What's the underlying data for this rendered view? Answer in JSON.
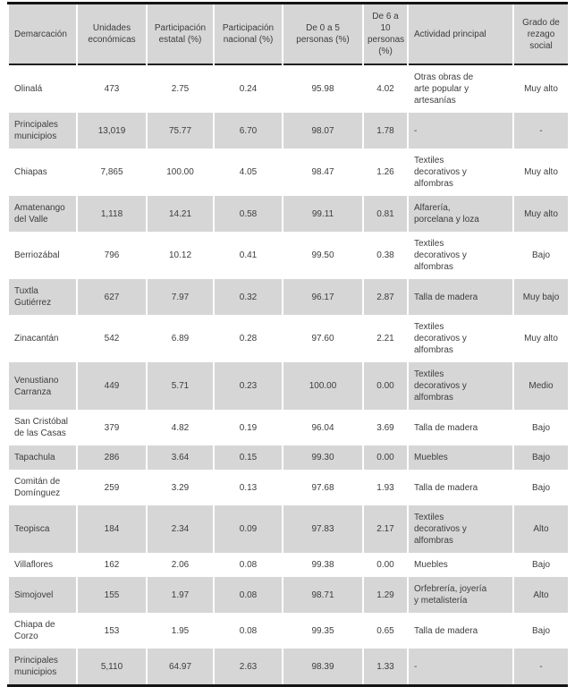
{
  "colors": {
    "header_background": "#d6d6d6",
    "shaded_row_background": "#d6d6d6",
    "text": "#3d3d3d",
    "border": "#151515"
  },
  "table": {
    "columns": [
      {
        "key": "demarcacion",
        "label": "Demarcación",
        "align": "left"
      },
      {
        "key": "unidades-economicas",
        "label": "Unidades\neconómicas",
        "align": "center"
      },
      {
        "key": "participacion-estatal",
        "label": "Participación\nestatal (%)",
        "align": "center"
      },
      {
        "key": "participacion-nacional",
        "label": "Participación\nnacional (%)",
        "align": "center"
      },
      {
        "key": "de-0-a-5-personas",
        "label": "De 0 a 5\npersonas (%)",
        "align": "center"
      },
      {
        "key": "de-6-a-10-personas",
        "label": "De 6 a 10\npersonas\n(%)",
        "align": "center"
      },
      {
        "key": "actividad-principal",
        "label": "Actividad principal",
        "align": "left"
      },
      {
        "key": "grado-rezago-social",
        "label": "Grado de\nrezago social",
        "align": "center"
      }
    ],
    "rows": [
      [
        "Olinalá",
        "473",
        "2.75",
        "0.24",
        "95.98",
        "4.02",
        "Otras obras de\narte popular y\nartesanías",
        "Muy alto"
      ],
      [
        "Principales\nmunicipios",
        "13,019",
        "75.77",
        "6.70",
        "98.07",
        "1.78",
        "-",
        "-"
      ],
      [
        "Chiapas",
        "7,865",
        "100.00",
        "4.05",
        "98.47",
        "1.26",
        "Textiles\ndecorativos y\nalfombras",
        "Muy alto"
      ],
      [
        "Amatenango\ndel Valle",
        "1,118",
        "14.21",
        "0.58",
        "99.11",
        "0.81",
        "Alfarería,\nporcelana y loza",
        "Muy alto"
      ],
      [
        "Berriozábal",
        "796",
        "10.12",
        "0.41",
        "99.50",
        "0.38",
        "Textiles\ndecorativos y\nalfombras",
        "Bajo"
      ],
      [
        "Tuxtla Gutiérrez",
        "627",
        "7.97",
        "0.32",
        "96.17",
        "2.87",
        "Talla de madera",
        "Muy bajo"
      ],
      [
        "Zinacantán",
        "542",
        "6.89",
        "0.28",
        "97.60",
        "2.21",
        "Textiles\ndecorativos y\nalfombras",
        "Muy alto"
      ],
      [
        "Venustiano\nCarranza",
        "449",
        "5.71",
        "0.23",
        "100.00",
        "0.00",
        "Textiles\ndecorativos y\nalfombras",
        "Medio"
      ],
      [
        "San Cristóbal\nde las Casas",
        "379",
        "4.82",
        "0.19",
        "96.04",
        "3.69",
        "Talla de madera",
        "Bajo"
      ],
      [
        "Tapachula",
        "286",
        "3.64",
        "0.15",
        "99.30",
        "0.00",
        "Muebles",
        "Bajo"
      ],
      [
        "Comitán de\nDomínguez",
        "259",
        "3.29",
        "0.13",
        "97.68",
        "1.93",
        "Talla de madera",
        "Bajo"
      ],
      [
        "Teopisca",
        "184",
        "2.34",
        "0.09",
        "97.83",
        "2.17",
        "Textiles\ndecorativos y\nalfombras",
        "Alto"
      ],
      [
        "Villaflores",
        "162",
        "2.06",
        "0.08",
        "99.38",
        "0.00",
        "Muebles",
        "Bajo"
      ],
      [
        "Simojovel",
        "155",
        "1.97",
        "0.08",
        "98.71",
        "1.29",
        "Orfebrería, joyería\ny metalistería",
        "Alto"
      ],
      [
        "Chiapa de\nCorzo",
        "153",
        "1.95",
        "0.08",
        "99.35",
        "0.65",
        "Talla de madera",
        "Bajo"
      ],
      [
        "Principales\nmunicipios",
        "5,110",
        "64.97",
        "2.63",
        "98.39",
        "1.33",
        "-",
        "-"
      ]
    ]
  }
}
